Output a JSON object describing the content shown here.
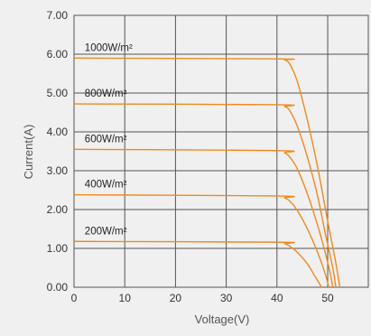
{
  "chart_data": {
    "type": "line",
    "xlabel": "Voltage(V)",
    "ylabel": "Current(A)",
    "xlim": [
      0,
      58
    ],
    "ylim": [
      0,
      7
    ],
    "x_ticks": [
      "0",
      "10",
      "20",
      "30",
      "40",
      "50"
    ],
    "y_ticks": [
      "0.00",
      "1.00",
      "2.00",
      "3.00",
      "4.00",
      "5.00",
      "6.00",
      "7.00"
    ],
    "grid": true,
    "line_color": "#ee8a1d",
    "series": [
      {
        "name": "1000W/m²",
        "points": [
          [
            0,
            5.9
          ],
          [
            40,
            5.88
          ],
          [
            41.5,
            5.85
          ],
          [
            42.5,
            5.75
          ],
          [
            44,
            5.3
          ],
          [
            46,
            4.3
          ],
          [
            48,
            3.1
          ],
          [
            50,
            1.7
          ],
          [
            51.5,
            0.7
          ],
          [
            52.4,
            0
          ]
        ]
      },
      {
        "name": "800W/m²",
        "points": [
          [
            0,
            4.72
          ],
          [
            40,
            4.7
          ],
          [
            41.5,
            4.65
          ],
          [
            42.5,
            4.55
          ],
          [
            44,
            4.15
          ],
          [
            46,
            3.35
          ],
          [
            48,
            2.35
          ],
          [
            49.5,
            1.4
          ],
          [
            51,
            0.5
          ],
          [
            51.6,
            0
          ]
        ]
      },
      {
        "name": "600W/m²",
        "points": [
          [
            0,
            3.55
          ],
          [
            40,
            3.52
          ],
          [
            41.5,
            3.46
          ],
          [
            42.5,
            3.36
          ],
          [
            44,
            3.05
          ],
          [
            46,
            2.4
          ],
          [
            48,
            1.6
          ],
          [
            49.5,
            0.9
          ],
          [
            50.5,
            0.35
          ],
          [
            51,
            0
          ]
        ]
      },
      {
        "name": "400W/m²",
        "points": [
          [
            0,
            2.38
          ],
          [
            40,
            2.35
          ],
          [
            41.5,
            2.3
          ],
          [
            42.5,
            2.22
          ],
          [
            44,
            1.98
          ],
          [
            46,
            1.5
          ],
          [
            48,
            0.9
          ],
          [
            49.5,
            0.35
          ],
          [
            50.2,
            0
          ]
        ]
      },
      {
        "name": "200W/m²",
        "points": [
          [
            0,
            1.18
          ],
          [
            40,
            1.16
          ],
          [
            41.5,
            1.12
          ],
          [
            42.5,
            1.06
          ],
          [
            44,
            0.9
          ],
          [
            46,
            0.6
          ],
          [
            47.5,
            0.28
          ],
          [
            48.8,
            0
          ]
        ]
      }
    ]
  }
}
